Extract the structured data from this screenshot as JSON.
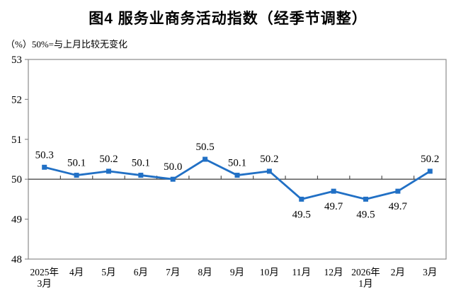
{
  "header": {
    "title": "图4  服务业商务活动指数（经季节调整）",
    "subtitle": "（%）50%=与上月比较无变化"
  },
  "chart_data": {
    "type": "line",
    "title": "图4  服务业商务活动指数（经季节调整）",
    "unit_note": "（%）50%=与上月比较无变化",
    "categories": [
      [
        "2025年",
        "3月"
      ],
      [
        "4月"
      ],
      [
        "5月"
      ],
      [
        "6月"
      ],
      [
        "7月"
      ],
      [
        "8月"
      ],
      [
        "9月"
      ],
      [
        "10月"
      ],
      [
        "11月"
      ],
      [
        "12月"
      ],
      [
        "2026年",
        "1月"
      ],
      [
        "2月"
      ],
      [
        "3月"
      ]
    ],
    "values": [
      50.3,
      50.1,
      50.2,
      50.1,
      50.0,
      50.5,
      50.1,
      50.2,
      49.5,
      49.7,
      49.5,
      49.7,
      50.2
    ],
    "data_labels": [
      "50.3",
      "50.1",
      "50.2",
      "50.1",
      "50.0",
      "50.5",
      "50.1",
      "50.2",
      "49.5",
      "49.7",
      "49.5",
      "49.7",
      "50.2"
    ],
    "y_ticks": [
      48,
      49,
      50,
      51,
      52,
      53
    ],
    "ylim": [
      48,
      53
    ],
    "baseline_value": 50,
    "grid": false,
    "legend": false,
    "line_color": "#2170c5",
    "marker": "square",
    "frame_color": "#8c8c8c",
    "baseline_color": "#4d4d4d",
    "text_color": "#000000"
  }
}
